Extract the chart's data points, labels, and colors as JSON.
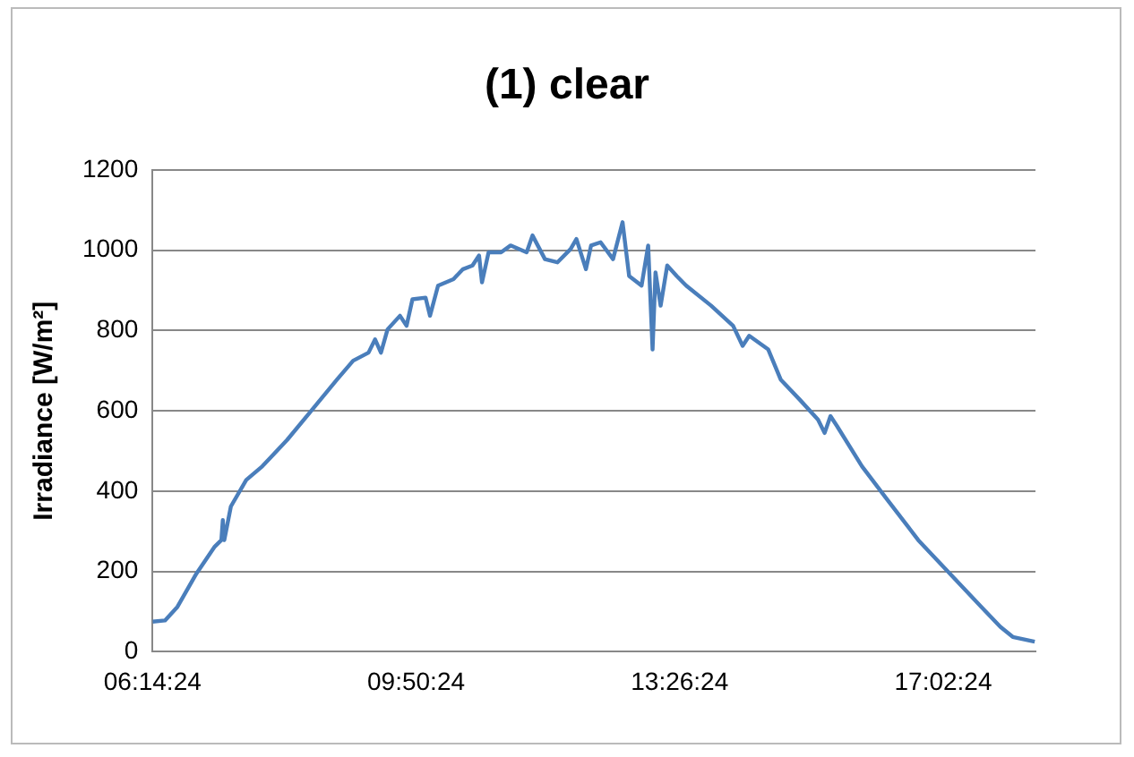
{
  "chart_data": {
    "type": "line",
    "title": "(1) clear",
    "ylabel": "Irradiance [W/m²]",
    "x": [
      6.24,
      6.41,
      6.58,
      6.84,
      7.09,
      7.18,
      7.2,
      7.22,
      7.31,
      7.52,
      7.74,
      8.08,
      8.42,
      8.76,
      8.98,
      9.19,
      9.28,
      9.36,
      9.45,
      9.62,
      9.71,
      9.79,
      9.97,
      10.03,
      10.14,
      10.35,
      10.48,
      10.61,
      10.7,
      10.74,
      10.83,
      11,
      11.13,
      11.35,
      11.43,
      11.6,
      11.77,
      11.95,
      12.03,
      12.16,
      12.23,
      12.36,
      12.53,
      12.66,
      12.75,
      12.92,
      13.01,
      13.07,
      13.11,
      13.18,
      13.27,
      13.4,
      13.53,
      13.87,
      14.17,
      14.3,
      14.39,
      14.65,
      14.82,
      15.08,
      15.33,
      15.42,
      15.5,
      15.59,
      15.93,
      16.28,
      16.7,
      17.13,
      17.56,
      17.82,
      17.99,
      18.29
    ],
    "series": [
      {
        "color": "#4a7ebb",
        "values": [
          75,
          78,
          112,
          195,
          262,
          278,
          328,
          278,
          362,
          428,
          462,
          528,
          603,
          678,
          725,
          745,
          778,
          745,
          803,
          837,
          812,
          878,
          882,
          837,
          912,
          928,
          953,
          962,
          987,
          920,
          995,
          995,
          1012,
          995,
          1037,
          978,
          970,
          1003,
          1028,
          953,
          1012,
          1020,
          978,
          1070,
          936,
          912,
          1012,
          753,
          945,
          862,
          962,
          936,
          912,
          862,
          812,
          762,
          787,
          753,
          678,
          628,
          578,
          545,
          587,
          562,
          462,
          378,
          278,
          195,
          112,
          62,
          37,
          25
        ]
      }
    ],
    "xlim": [
      6.24,
      18.3
    ],
    "xticks": [
      {
        "value": 6.24,
        "label": "06:14:24"
      },
      {
        "value": 9.84,
        "label": "09:50:24"
      },
      {
        "value": 13.44,
        "label": "13:26:24"
      },
      {
        "value": 17.04,
        "label": "17:02:24"
      }
    ],
    "ylim": [
      0,
      1200
    ],
    "yticks": [
      0,
      200,
      400,
      600,
      800,
      1000,
      1200
    ],
    "grid": "y",
    "legend": false,
    "marker": "none",
    "line_style": "solid"
  }
}
